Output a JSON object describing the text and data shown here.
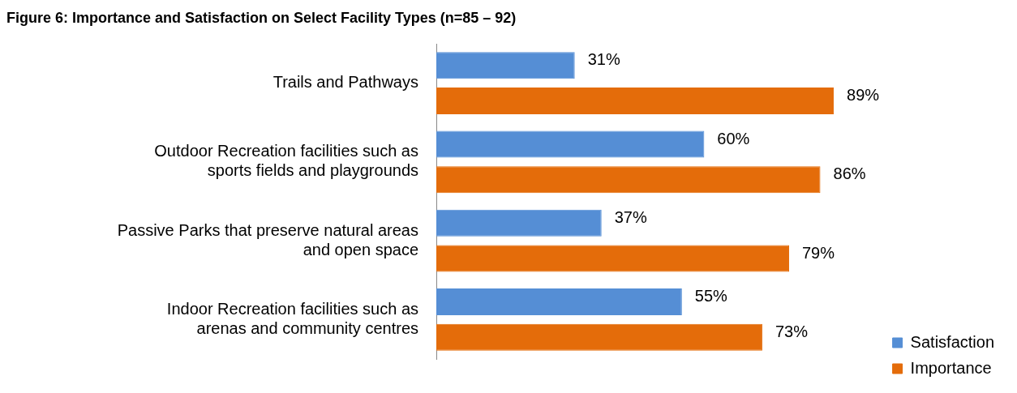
{
  "chart_data": {
    "type": "bar",
    "orientation": "horizontal",
    "title": "Figure 6: Importance and Satisfaction on Select Facility Types (n=85 – 92)",
    "categories": [
      "Trails and Pathways",
      "Outdoor Recreation facilities such as sports fields and playgrounds",
      "Passive Parks that preserve natural areas and open space",
      "Indoor Recreation facilities such as arenas and community centres"
    ],
    "series": [
      {
        "name": "Satisfaction",
        "color": "#558ed5",
        "values": [
          31,
          60,
          37,
          55
        ],
        "value_labels": [
          "31%",
          "60%",
          "37%",
          "55%"
        ]
      },
      {
        "name": "Importance",
        "color": "#e46c0a",
        "values": [
          89,
          86,
          79,
          73
        ],
        "value_labels": [
          "89%",
          "86%",
          "79%",
          "73%"
        ]
      }
    ],
    "legend": "bottom right",
    "grid": false
  }
}
